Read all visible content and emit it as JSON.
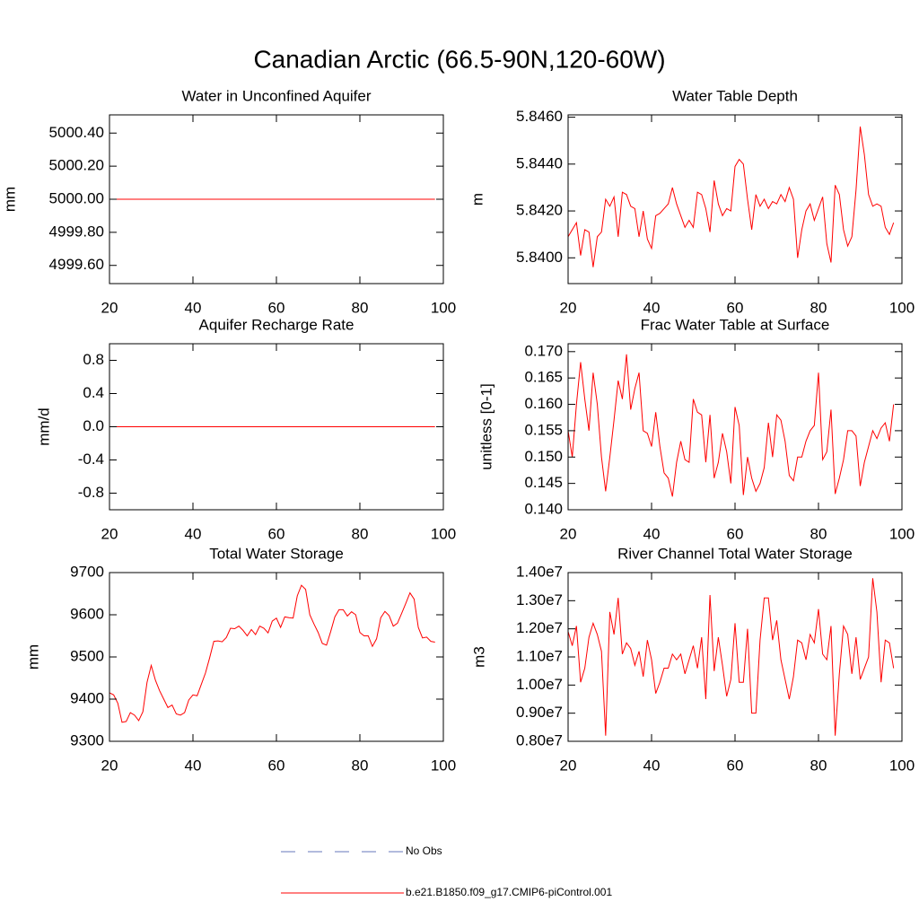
{
  "title": "Canadian Arctic (66.5-90N,120-60W)",
  "legend": [
    {
      "name": "No Obs",
      "color": "#6677bb",
      "dashed": true
    },
    {
      "name": "b.e21.B1850.f09_g17.CMIP6-piControl.001",
      "color": "#ff0000",
      "dashed": false
    }
  ],
  "chart_data": [
    {
      "type": "line",
      "title": "Water in Unconfined Aquifer",
      "y_label": "mm",
      "x": [
        20,
        21,
        22,
        23,
        24,
        25,
        26,
        27,
        28,
        29,
        30,
        31,
        32,
        33,
        34,
        35,
        36,
        37,
        38,
        39,
        40,
        41,
        42,
        43,
        44,
        45,
        46,
        47,
        48,
        49,
        50,
        51,
        52,
        53,
        54,
        55,
        56,
        57,
        58,
        59,
        60,
        61,
        62,
        63,
        64,
        65,
        66,
        67,
        68,
        69,
        70,
        71,
        72,
        73,
        74,
        75,
        76,
        77,
        78,
        79,
        80,
        81,
        82,
        83,
        84,
        85,
        86,
        87,
        88,
        89,
        90,
        91,
        92,
        93,
        94,
        95,
        96,
        97,
        98
      ],
      "series": [
        {
          "color": "#ff0000",
          "values": [
            5000,
            5000,
            5000,
            5000,
            5000,
            5000,
            5000,
            5000,
            5000,
            5000,
            5000,
            5000,
            5000,
            5000,
            5000,
            5000,
            5000,
            5000,
            5000,
            5000,
            5000,
            5000,
            5000,
            5000,
            5000,
            5000,
            5000,
            5000,
            5000,
            5000,
            5000,
            5000,
            5000,
            5000,
            5000,
            5000,
            5000,
            5000,
            5000,
            5000,
            5000,
            5000,
            5000,
            5000,
            5000,
            5000,
            5000,
            5000,
            5000,
            5000,
            5000,
            5000,
            5000,
            5000,
            5000,
            5000,
            5000,
            5000,
            5000,
            5000,
            5000,
            5000,
            5000,
            5000,
            5000,
            5000,
            5000,
            5000,
            5000,
            5000,
            5000,
            5000,
            5000,
            5000,
            5000,
            5000,
            5000,
            5000,
            5000
          ]
        }
      ],
      "xlim": [
        20,
        100
      ],
      "xticks": [
        20,
        40,
        60,
        80,
        100
      ],
      "ylim": [
        4999.49,
        5000.51
      ],
      "yticks": [
        {
          "value": 4999.6,
          "label": "4999.60"
        },
        {
          "value": 4999.8,
          "label": "4999.80"
        },
        {
          "value": 5000,
          "label": "5000.00"
        },
        {
          "value": 5000.2,
          "label": "5000.20"
        },
        {
          "value": 5000.4,
          "label": "5000.40"
        }
      ]
    },
    {
      "type": "line",
      "title": "Water Table Depth",
      "y_label": "m",
      "x": [
        20,
        21,
        22,
        23,
        24,
        25,
        26,
        27,
        28,
        29,
        30,
        31,
        32,
        33,
        34,
        35,
        36,
        37,
        38,
        39,
        40,
        41,
        42,
        43,
        44,
        45,
        46,
        47,
        48,
        49,
        50,
        51,
        52,
        53,
        54,
        55,
        56,
        57,
        58,
        59,
        60,
        61,
        62,
        63,
        64,
        65,
        66,
        67,
        68,
        69,
        70,
        71,
        72,
        73,
        74,
        75,
        76,
        77,
        78,
        79,
        80,
        81,
        82,
        83,
        84,
        85,
        86,
        87,
        88,
        89,
        90,
        91,
        92,
        93,
        94,
        95,
        96,
        97,
        98
      ],
      "series": [
        {
          "color": "#ff0000",
          "values": [
            5.8409,
            5.8412,
            5.8415,
            5.8401,
            5.8412,
            5.8411,
            5.8396,
            5.8409,
            5.8411,
            5.8425,
            5.8422,
            5.8426,
            5.8409,
            5.8428,
            5.8427,
            5.8422,
            5.8421,
            5.8409,
            5.842,
            5.8408,
            5.8404,
            5.8418,
            5.8419,
            5.8421,
            5.8423,
            5.843,
            5.8423,
            5.8418,
            5.8413,
            5.8416,
            5.8413,
            5.8428,
            5.8427,
            5.8421,
            5.8411,
            5.8433,
            5.8423,
            5.8418,
            5.8421,
            5.842,
            5.8439,
            5.8442,
            5.844,
            5.8425,
            5.8412,
            5.8427,
            5.8422,
            5.8425,
            5.8421,
            5.8424,
            5.8423,
            5.8427,
            5.8424,
            5.843,
            5.8425,
            5.84,
            5.8412,
            5.842,
            5.8423,
            5.8416,
            5.8421,
            5.8426,
            5.8406,
            5.8398,
            5.8431,
            5.8427,
            5.8412,
            5.8405,
            5.8409,
            5.8429,
            5.8456,
            5.8444,
            5.8427,
            5.8422,
            5.8423,
            5.8422,
            5.8413,
            5.841,
            5.8415
          ]
        }
      ],
      "xlim": [
        20,
        100
      ],
      "xticks": [
        20,
        40,
        60,
        80,
        100
      ],
      "ylim": [
        5.8389,
        5.8461
      ],
      "yticks": [
        {
          "value": 5.84,
          "label": "5.8400"
        },
        {
          "value": 5.842,
          "label": "5.8420"
        },
        {
          "value": 5.844,
          "label": "5.8440"
        },
        {
          "value": 5.846,
          "label": "5.8460"
        }
      ]
    },
    {
      "type": "line",
      "title": "Aquifer Recharge Rate",
      "y_label": "mm/d",
      "x": [
        20,
        21,
        22,
        23,
        24,
        25,
        26,
        27,
        28,
        29,
        30,
        31,
        32,
        33,
        34,
        35,
        36,
        37,
        38,
        39,
        40,
        41,
        42,
        43,
        44,
        45,
        46,
        47,
        48,
        49,
        50,
        51,
        52,
        53,
        54,
        55,
        56,
        57,
        58,
        59,
        60,
        61,
        62,
        63,
        64,
        65,
        66,
        67,
        68,
        69,
        70,
        71,
        72,
        73,
        74,
        75,
        76,
        77,
        78,
        79,
        80,
        81,
        82,
        83,
        84,
        85,
        86,
        87,
        88,
        89,
        90,
        91,
        92,
        93,
        94,
        95,
        96,
        97,
        98
      ],
      "series": [
        {
          "color": "#ff0000",
          "values": [
            0,
            0,
            0,
            0,
            0,
            0,
            0,
            0,
            0,
            0,
            0,
            0,
            0,
            0,
            0,
            0,
            0,
            0,
            0,
            0,
            0,
            0,
            0,
            0,
            0,
            0,
            0,
            0,
            0,
            0,
            0,
            0,
            0,
            0,
            0,
            0,
            0,
            0,
            0,
            0,
            0,
            0,
            0,
            0,
            0,
            0,
            0,
            0,
            0,
            0,
            0,
            0,
            0,
            0,
            0,
            0,
            0,
            0,
            0,
            0,
            0,
            0,
            0,
            0,
            0,
            0,
            0,
            0,
            0,
            0,
            0,
            0,
            0,
            0,
            0,
            0,
            0,
            0,
            0
          ]
        }
      ],
      "xlim": [
        20,
        100
      ],
      "xticks": [
        20,
        40,
        60,
        80,
        100
      ],
      "ylim": [
        -1,
        1
      ],
      "yticks": [
        -0.8,
        -0.4,
        {
          "value": 0,
          "label": "0.0"
        },
        0.4,
        0.8
      ]
    },
    {
      "type": "line",
      "title": "Frac Water Table at Surface",
      "y_label": "unitless [0-1]",
      "x": [
        20,
        21,
        22,
        23,
        24,
        25,
        26,
        27,
        28,
        29,
        30,
        31,
        32,
        33,
        34,
        35,
        36,
        37,
        38,
        39,
        40,
        41,
        42,
        43,
        44,
        45,
        46,
        47,
        48,
        49,
        50,
        51,
        52,
        53,
        54,
        55,
        56,
        57,
        58,
        59,
        60,
        61,
        62,
        63,
        64,
        65,
        66,
        67,
        68,
        69,
        70,
        71,
        72,
        73,
        74,
        75,
        76,
        77,
        78,
        79,
        80,
        81,
        82,
        83,
        84,
        85,
        86,
        87,
        88,
        89,
        90,
        91,
        92,
        93,
        94,
        95,
        96,
        97,
        98
      ],
      "series": [
        {
          "color": "#ff0000",
          "values": [
            0.155,
            0.15,
            0.16,
            0.168,
            0.161,
            0.155,
            0.166,
            0.16,
            0.15,
            0.1435,
            0.15,
            0.157,
            0.1645,
            0.161,
            0.1695,
            0.159,
            0.163,
            0.166,
            0.155,
            0.1545,
            0.152,
            0.1585,
            0.152,
            0.147,
            0.146,
            0.1425,
            0.149,
            0.153,
            0.1495,
            0.149,
            0.161,
            0.1585,
            0.158,
            0.149,
            0.158,
            0.146,
            0.149,
            0.1545,
            0.151,
            0.145,
            0.1595,
            0.156,
            0.1428,
            0.15,
            0.146,
            0.1435,
            0.145,
            0.148,
            0.1565,
            0.15,
            0.158,
            0.157,
            0.153,
            0.1465,
            0.1455,
            0.15,
            0.15,
            0.153,
            0.155,
            0.156,
            0.166,
            0.1495,
            0.151,
            0.159,
            0.143,
            0.146,
            0.1495,
            0.155,
            0.155,
            0.154,
            0.1445,
            0.149,
            0.152,
            0.155,
            0.1535,
            0.1555,
            0.1565,
            0.153,
            0.16
          ]
        }
      ],
      "xlim": [
        20,
        100
      ],
      "xticks": [
        20,
        40,
        60,
        80,
        100
      ],
      "ylim": [
        0.14,
        0.1715
      ],
      "yticks": [
        {
          "value": 0.14,
          "label": "0.140"
        },
        0.145,
        {
          "value": 0.15,
          "label": "0.150"
        },
        0.155,
        {
          "value": 0.16,
          "label": "0.160"
        },
        0.165,
        {
          "value": 0.17,
          "label": "0.170"
        }
      ]
    },
    {
      "type": "line",
      "title": "Total Water Storage",
      "y_label": "mm",
      "x": [
        20,
        21,
        22,
        23,
        24,
        25,
        26,
        27,
        28,
        29,
        30,
        31,
        32,
        33,
        34,
        35,
        36,
        37,
        38,
        39,
        40,
        41,
        42,
        43,
        44,
        45,
        46,
        47,
        48,
        49,
        50,
        51,
        52,
        53,
        54,
        55,
        56,
        57,
        58,
        59,
        60,
        61,
        62,
        63,
        64,
        65,
        66,
        67,
        68,
        69,
        70,
        71,
        72,
        73,
        74,
        75,
        76,
        77,
        78,
        79,
        80,
        81,
        82,
        83,
        84,
        85,
        86,
        87,
        88,
        89,
        90,
        91,
        92,
        93,
        94,
        95,
        96,
        97,
        98
      ],
      "series": [
        {
          "color": "#ff0000",
          "values": [
            9415,
            9410,
            9390,
            9345,
            9347,
            9368,
            9362,
            9349,
            9370,
            9440,
            9480,
            9445,
            9420,
            9400,
            9380,
            9386,
            9365,
            9362,
            9368,
            9398,
            9410,
            9408,
            9435,
            9462,
            9498,
            9537,
            9538,
            9536,
            9546,
            9568,
            9567,
            9573,
            9563,
            9550,
            9565,
            9553,
            9573,
            9568,
            9557,
            9585,
            9592,
            9570,
            9595,
            9593,
            9592,
            9645,
            9670,
            9660,
            9600,
            9578,
            9558,
            9532,
            9528,
            9560,
            9595,
            9612,
            9612,
            9597,
            9607,
            9600,
            9558,
            9550,
            9550,
            9525,
            9543,
            9593,
            9608,
            9598,
            9573,
            9580,
            9603,
            9627,
            9652,
            9637,
            9570,
            9545,
            9547,
            9537,
            9535
          ]
        }
      ],
      "xlim": [
        20,
        100
      ],
      "xticks": [
        20,
        40,
        60,
        80,
        100
      ],
      "ylim": [
        9300,
        9700
      ],
      "yticks": [
        9300,
        9400,
        9500,
        9600,
        9700
      ]
    },
    {
      "type": "line",
      "title": "River Channel Total Water Storage",
      "y_label": "m3",
      "x": [
        20,
        21,
        22,
        23,
        24,
        25,
        26,
        27,
        28,
        29,
        30,
        31,
        32,
        33,
        34,
        35,
        36,
        37,
        38,
        39,
        40,
        41,
        42,
        43,
        44,
        45,
        46,
        47,
        48,
        49,
        50,
        51,
        52,
        53,
        54,
        55,
        56,
        57,
        58,
        59,
        60,
        61,
        62,
        63,
        64,
        65,
        66,
        67,
        68,
        69,
        70,
        71,
        72,
        73,
        74,
        75,
        76,
        77,
        78,
        79,
        80,
        81,
        82,
        83,
        84,
        85,
        86,
        87,
        88,
        89,
        90,
        91,
        92,
        93,
        94,
        95,
        96,
        97,
        98
      ],
      "series": [
        {
          "color": "#ff0000",
          "values": [
            11900000,
            11400000,
            12100000,
            10100000,
            10600000,
            11700000,
            12200000,
            11800000,
            11200000,
            8200000,
            12600000,
            11800000,
            13100000,
            11100000,
            11500000,
            11300000,
            10700000,
            11200000,
            10300000,
            11600000,
            10900000,
            9700000,
            10100000,
            10600000,
            10600000,
            11100000,
            10900000,
            11100000,
            10400000,
            10900000,
            11400000,
            10600000,
            11700000,
            9500000,
            13200000,
            10500000,
            11700000,
            10700000,
            9600000,
            10200000,
            12200000,
            10100000,
            10100000,
            12000000,
            9000000,
            9000000,
            11600000,
            13100000,
            13100000,
            11600000,
            12300000,
            10900000,
            10200000,
            9500000,
            10300000,
            11600000,
            11500000,
            10900000,
            11800000,
            11500000,
            12700000,
            11100000,
            10900000,
            12100000,
            8200000,
            10400000,
            12100000,
            11800000,
            10400000,
            11700000,
            10200000,
            10600000,
            11000000,
            13800000,
            12600000,
            10100000,
            11600000,
            11500000,
            10600000
          ]
        }
      ],
      "xlim": [
        20,
        100
      ],
      "xticks": [
        20,
        40,
        60,
        80,
        100
      ],
      "ylim": [
        8000000,
        14000000
      ],
      "yticks": [
        {
          "value": 8000000,
          "label": "0.80e7"
        },
        {
          "value": 9000000,
          "label": "0.90e7"
        },
        {
          "value": 10000000,
          "label": "1.00e7"
        },
        {
          "value": 11000000,
          "label": "1.10e7"
        },
        {
          "value": 12000000,
          "label": "1.20e7"
        },
        {
          "value": 13000000,
          "label": "1.30e7"
        },
        {
          "value": 14000000,
          "label": "1.40e7"
        }
      ]
    }
  ]
}
